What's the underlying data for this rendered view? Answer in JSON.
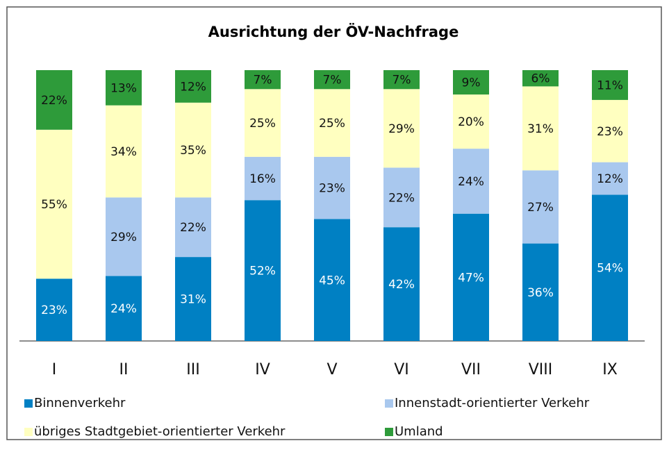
{
  "chart_data": {
    "type": "stacked_bar",
    "title": "Ausrichtung der ÖV-Nachfrage",
    "categories": [
      "I",
      "II",
      "III",
      "IV",
      "V",
      "VI",
      "VII",
      "VIII",
      "IX"
    ],
    "series": [
      {
        "name": "Binnenverkehr",
        "color": "#0080c3",
        "values": [
          23,
          24,
          31,
          52,
          45,
          42,
          47,
          36,
          54
        ],
        "value_labels": [
          "23%",
          "24%",
          "31%",
          "52%",
          "45%",
          "42%",
          "47%",
          "36%",
          "54%"
        ]
      },
      {
        "name": "Innenstadt-orientierter Verkehr",
        "color": "#a9c8ee",
        "values": [
          null,
          29,
          22,
          16,
          23,
          22,
          24,
          27,
          12
        ],
        "value_labels": [
          null,
          "29%",
          "22%",
          "16%",
          "23%",
          "22%",
          "24%",
          "27%",
          "12%"
        ]
      },
      {
        "name": "übriges Stadtgebiet-orientierter Verkehr",
        "color": "#ffffc0",
        "values": [
          55,
          34,
          35,
          25,
          25,
          29,
          20,
          31,
          23
        ],
        "value_labels": [
          "55%",
          "34%",
          "35%",
          "25%",
          "25%",
          "29%",
          "20%",
          "31%",
          "23%"
        ]
      },
      {
        "name": "Umland",
        "color": "#2e9b3a",
        "values": [
          22,
          13,
          12,
          7,
          7,
          7,
          9,
          6,
          11
        ],
        "value_labels": [
          "22%",
          "13%",
          "12%",
          "7%",
          "7%",
          "7%",
          "9%",
          "6%",
          "11%"
        ]
      }
    ]
  }
}
